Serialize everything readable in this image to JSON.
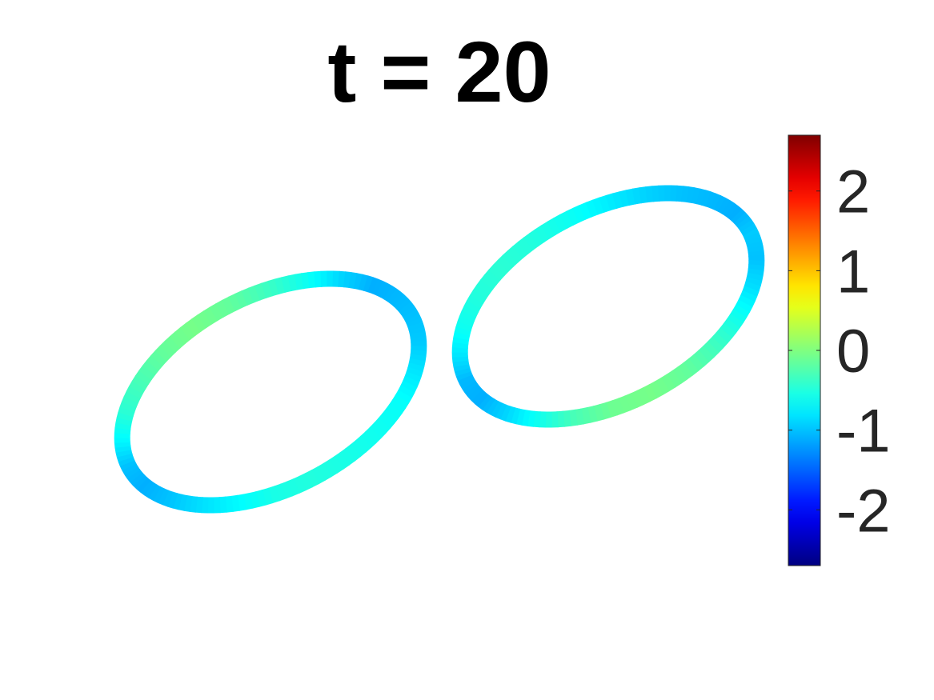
{
  "chart_data": {
    "type": "heatmap",
    "title": "t = 20",
    "colormap": "jet",
    "colorbar": {
      "clim": [
        -2.7,
        2.7
      ],
      "ticks": [
        -2,
        -1,
        0,
        1,
        2
      ],
      "tick_labels": [
        "-2",
        "-1",
        "0",
        "1",
        "2"
      ]
    },
    "series": [
      {
        "shape": "closed-curve",
        "color_values": [
          -1.0,
          -0.95,
          -0.8,
          -0.65,
          -0.6,
          -0.55,
          -0.5,
          -0.55,
          -0.7,
          -0.85,
          -1.0,
          -1.1,
          -1.0,
          -0.7,
          -0.45,
          -0.3,
          -0.15,
          -0.05,
          -0.15,
          -0.35,
          -0.6,
          -0.9,
          -1.1,
          -1.05
        ]
      },
      {
        "shape": "closed-curve",
        "color_values": [
          -0.95,
          -1.0,
          -0.85,
          -0.6,
          -0.35,
          -0.15,
          -0.05,
          -0.1,
          -0.3,
          -0.6,
          -0.9,
          -1.1,
          -1.05,
          -0.8,
          -0.6,
          -0.5,
          -0.45,
          -0.5,
          -0.6,
          -0.75,
          -0.9,
          -1.0,
          -1.05,
          -1.1
        ]
      }
    ],
    "axes_visible": false,
    "grid": false
  }
}
